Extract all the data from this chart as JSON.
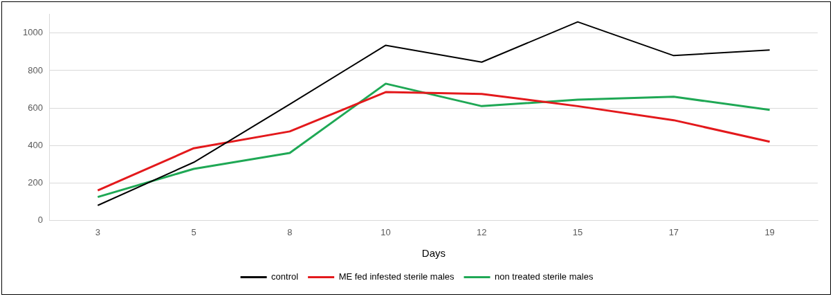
{
  "chart_data": {
    "type": "line",
    "xlabel": "Days",
    "categories": [
      "3",
      "5",
      "8",
      "10",
      "12",
      "15",
      "17",
      "19"
    ],
    "series": [
      {
        "name": "control",
        "color": "#000000",
        "values": [
          80,
          310,
          620,
          935,
          845,
          1060,
          880,
          910
        ]
      },
      {
        "name": "ME fed infested sterile males",
        "color": "#e3191c",
        "values": [
          160,
          385,
          475,
          685,
          675,
          610,
          535,
          420
        ]
      },
      {
        "name": "non treated sterile males",
        "color": "#1fa855",
        "values": [
          125,
          275,
          360,
          730,
          610,
          645,
          660,
          590
        ]
      }
    ],
    "ylim": [
      0,
      1100
    ],
    "yticks": [
      0,
      200,
      400,
      600,
      800,
      1000
    ],
    "grid": "y",
    "legend": "bottom",
    "marker": "none",
    "line_style": "solid"
  }
}
